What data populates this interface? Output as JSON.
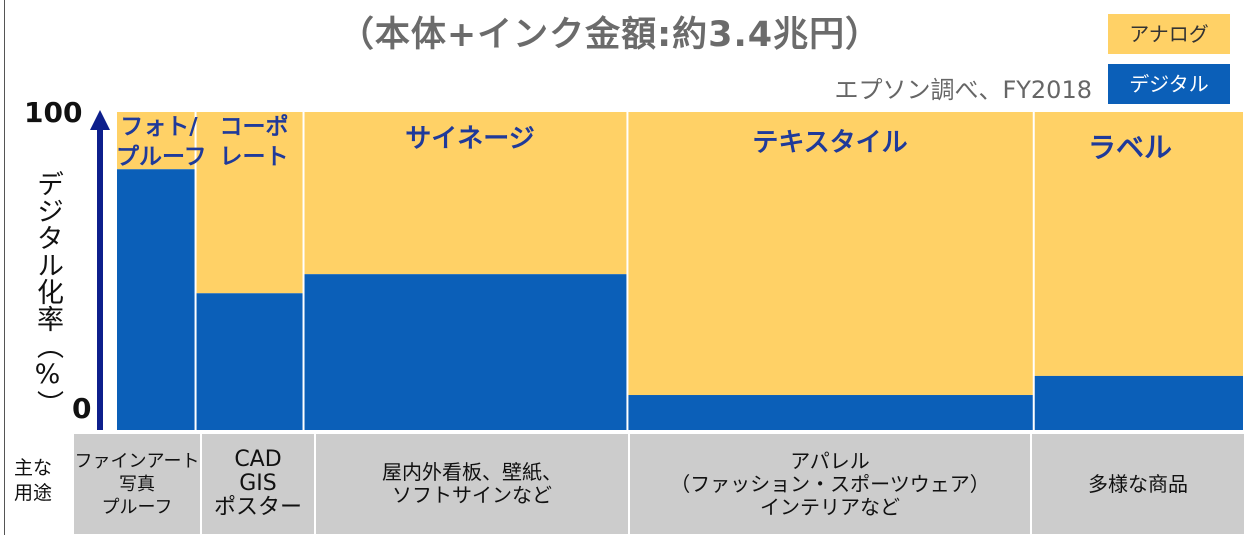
{
  "title": "（本体+インク金額:約3.4兆円）",
  "source": "エプソン調べ、FY2018",
  "legend": {
    "analog": "アナログ",
    "digital": "デジタル"
  },
  "colors": {
    "analog": "#FFD166",
    "digital": "#0B5FB8",
    "axis": "#0D1F8C",
    "label": "#1f3a9a",
    "use_bg": "#CCCCCC"
  },
  "chart_data": {
    "type": "mosaic",
    "ylabel": "デジタル化率（%）",
    "yticks": [
      "100",
      "0"
    ],
    "ylim": [
      0,
      100
    ],
    "segments": [
      {
        "name": "フォト/\nプルーフ",
        "width_share": 2.8,
        "digital_pct": 82,
        "analog_pct": 18
      },
      {
        "name": "コーポ\nレート",
        "width_share": 3.8,
        "digital_pct": 43,
        "analog_pct": 57
      },
      {
        "name": "サイネージ",
        "width_share": 11.4,
        "digital_pct": 49,
        "analog_pct": 51
      },
      {
        "name": "テキスタイル",
        "width_share": 14.3,
        "digital_pct": 11,
        "analog_pct": 89
      },
      {
        "name": "ラベル",
        "width_share": 7.4,
        "digital_pct": 17,
        "analog_pct": 83
      }
    ]
  },
  "uses": {
    "heading": "主な\n用途",
    "items": [
      "ファインアート\n写真\nプルーフ",
      "CAD\nGIS\nポスター",
      "屋内外看板、壁紙、\nソフトサインなど",
      "アパレル\n（ファッション・スポーツウェア）\nインテリアなど",
      "多様な商品"
    ]
  }
}
